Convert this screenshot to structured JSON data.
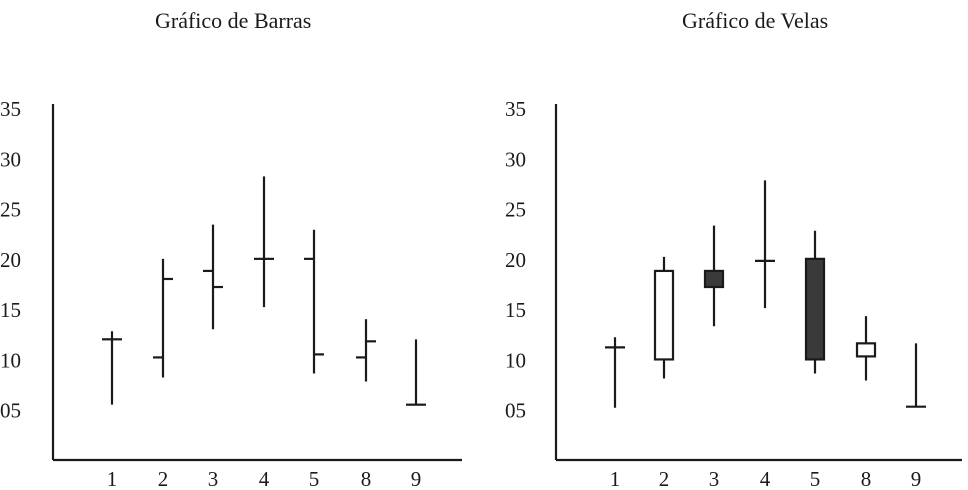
{
  "chart_data": [
    {
      "type": "ohlc",
      "title": "Gráfico de Barras",
      "xlabel": "",
      "ylabel": "",
      "categories": [
        "1",
        "2",
        "3",
        "4",
        "5",
        "8",
        "9"
      ],
      "yticks": [
        "05",
        "10",
        "15",
        "20",
        "25",
        "30",
        "35"
      ],
      "ylim": [
        0,
        35
      ],
      "grid": false,
      "bars": [
        {
          "x": "1",
          "open": 12,
          "high": 12.8,
          "low": 5.5,
          "close": 12
        },
        {
          "x": "2",
          "open": 10.2,
          "high": 20,
          "low": 8.2,
          "close": 18
        },
        {
          "x": "3",
          "open": 18.8,
          "high": 23.4,
          "low": 13,
          "close": 17.2
        },
        {
          "x": "4",
          "open": 20,
          "high": 28.2,
          "low": 15.2,
          "close": 20
        },
        {
          "x": "5",
          "open": 20,
          "high": 22.9,
          "low": 8.6,
          "close": 10.5
        },
        {
          "x": "8",
          "open": 10.2,
          "high": 14,
          "low": 7.8,
          "close": 11.8
        },
        {
          "x": "9",
          "open": 5.5,
          "high": 12,
          "low": 5.5,
          "close": 5.5
        }
      ]
    },
    {
      "type": "candlestick",
      "title": "Gráfico de Velas",
      "xlabel": "",
      "ylabel": "",
      "categories": [
        "1",
        "2",
        "3",
        "4",
        "5",
        "8",
        "9"
      ],
      "yticks": [
        "05",
        "10",
        "15",
        "20",
        "25",
        "30",
        "35"
      ],
      "ylim": [
        0,
        35
      ],
      "grid": false,
      "up_color": "#ffffff",
      "down_color": "#3a3a3a",
      "candles": [
        {
          "x": "1",
          "open": 11.2,
          "high": 12.2,
          "low": 5.2,
          "close": 11.2
        },
        {
          "x": "2",
          "open": 10,
          "high": 20.2,
          "low": 8.1,
          "close": 18.8
        },
        {
          "x": "3",
          "open": 18.8,
          "high": 23.3,
          "low": 13.3,
          "close": 17.2
        },
        {
          "x": "4",
          "open": 19.8,
          "high": 27.8,
          "low": 15.1,
          "close": 19.8
        },
        {
          "x": "5",
          "open": 20,
          "high": 22.8,
          "low": 8.6,
          "close": 10
        },
        {
          "x": "8",
          "open": 10.3,
          "high": 14.3,
          "low": 7.9,
          "close": 11.6
        },
        {
          "x": "9",
          "open": 5.3,
          "high": 11.6,
          "low": 5.3,
          "close": 5.3
        }
      ]
    }
  ]
}
